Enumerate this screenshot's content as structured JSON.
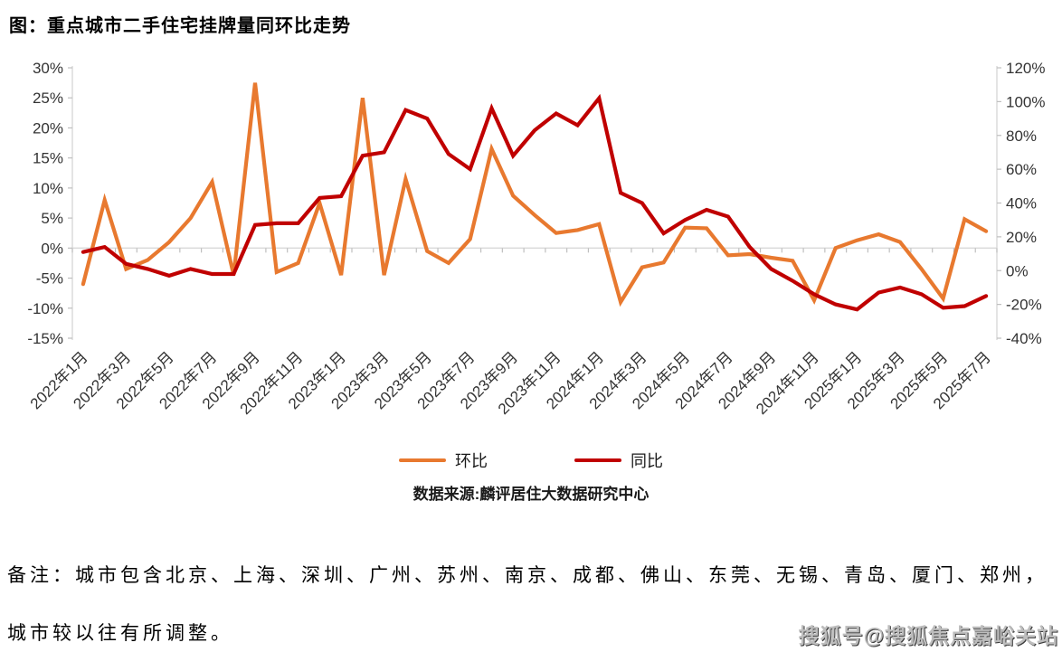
{
  "title": "图：重点城市二手住宅挂牌量同环比走势",
  "source_note": "数据来源:麟评居住大数据研究中心",
  "footnote_line1": "备注：城市包含北京、上海、深圳、广州、苏州、南京、成都、佛山、东莞、无锡、青岛、厦门、郑州，",
  "footnote_line2": "城市较以往有所调整。",
  "watermark": "搜狐号@搜狐焦点嘉峪关站",
  "legend": [
    {
      "label": "环比",
      "color": "#E8792F"
    },
    {
      "label": "同比",
      "color": "#C00000"
    }
  ],
  "colors": {
    "mom_line": "#E8792F",
    "yoy_line": "#C00000",
    "axis": "#d9d9d9",
    "tick": "#bfbfbf",
    "axis_text": "#333333"
  },
  "chart_data": {
    "type": "line",
    "x": [
      "2022年1月",
      "2022年2月",
      "2022年3月",
      "2022年4月",
      "2022年5月",
      "2022年6月",
      "2022年7月",
      "2022年8月",
      "2022年9月",
      "2022年10月",
      "2022年11月",
      "2022年12月",
      "2023年1月",
      "2023年2月",
      "2023年3月",
      "2023年4月",
      "2023年5月",
      "2023年6月",
      "2023年7月",
      "2023年8月",
      "2023年9月",
      "2023年10月",
      "2023年11月",
      "2023年12月",
      "2024年1月",
      "2024年2月",
      "2024年3月",
      "2024年4月",
      "2024年5月",
      "2024年6月",
      "2024年7月",
      "2024年8月",
      "2024年9月",
      "2024年10月",
      "2024年11月",
      "2024年12月",
      "2025年1月",
      "2025年2月",
      "2025年3月",
      "2025年4月",
      "2025年5月",
      "2025年6月",
      "2025年7月"
    ],
    "x_tick_step": 2,
    "series": [
      {
        "name": "环比",
        "axis": "left",
        "color": "#E8792F",
        "values": [
          -6,
          8,
          -3.5,
          -2,
          1,
          5,
          11,
          -4.5,
          27.5,
          -4,
          -2.5,
          7.5,
          -4.5,
          25,
          -4.5,
          11.5,
          -0.5,
          -2.5,
          1.5,
          16.5,
          8.7,
          5.5,
          2.5,
          3,
          4,
          -9,
          -3.2,
          -2.4,
          3.4,
          3.3,
          -1.2,
          -1,
          -1.6,
          -2.1,
          -8.7,
          0,
          1.3,
          2.3,
          1,
          -3.5,
          -8.4,
          4.8,
          2.8
        ]
      },
      {
        "name": "同比",
        "axis": "right",
        "color": "#C00000",
        "values": [
          11,
          14,
          4,
          1,
          -3,
          1,
          -2,
          -2,
          27,
          28,
          28,
          43,
          44,
          68,
          70,
          95,
          90,
          69,
          60,
          96,
          68,
          83,
          93,
          86,
          102,
          46,
          40,
          22,
          30,
          36,
          32,
          14,
          1,
          -6,
          -14,
          -20,
          -23,
          -13,
          -10,
          -14,
          -22,
          -21,
          -15
        ]
      }
    ],
    "left_axis": {
      "min": -15,
      "max": 30,
      "step": 5,
      "tick_labels": [
        "30%",
        "25%",
        "20%",
        "15%",
        "10%",
        "5%",
        "0%",
        "-5%",
        "-10%",
        "-15%"
      ]
    },
    "right_axis": {
      "min": -40,
      "max": 120,
      "step": 20,
      "tick_labels": [
        "120%",
        "100%",
        "80%",
        "60%",
        "40%",
        "20%",
        "0%",
        "-20%",
        "-40%"
      ]
    },
    "grid": "zero-line-only",
    "legend_position": "bottom"
  }
}
